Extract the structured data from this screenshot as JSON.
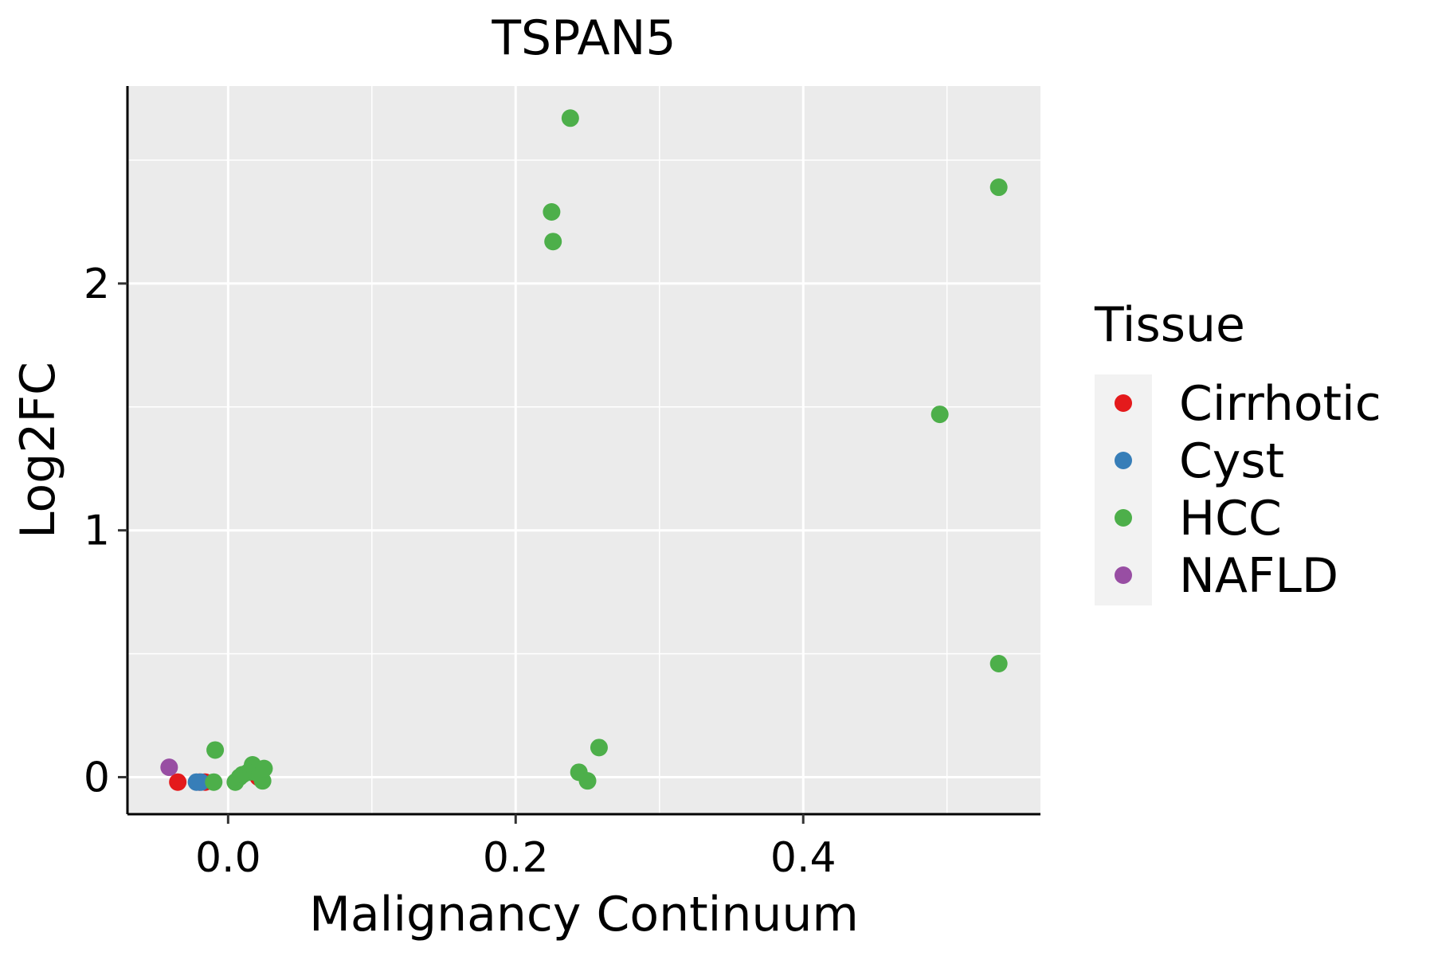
{
  "chart_data": {
    "type": "scatter",
    "title": "TSPAN5",
    "xlabel": "Malignancy Continuum",
    "ylabel": "Log2FC",
    "xlim": [
      -0.07,
      0.565
    ],
    "ylim": [
      -0.15,
      2.8
    ],
    "x_ticks": [
      0.0,
      0.2,
      0.4
    ],
    "x_tick_labels": [
      "0.0",
      "0.2",
      "0.4"
    ],
    "y_ticks": [
      0,
      1,
      2
    ],
    "y_tick_labels": [
      "0",
      "1",
      "2"
    ],
    "grid": true,
    "legend": {
      "title": "Tissue",
      "position": "right",
      "entries": [
        "Cirrhotic",
        "Cyst",
        "HCC",
        "NAFLD"
      ]
    },
    "colors": {
      "Cirrhotic": "#E41A1C",
      "Cyst": "#377EB8",
      "HCC": "#4DAF4A",
      "NAFLD": "#984EA3",
      "panel_bg": "#EBEBEB",
      "grid": "#FFFFFF"
    },
    "series": [
      {
        "name": "Cirrhotic",
        "points": [
          [
            -0.035,
            -0.02
          ],
          [
            -0.02,
            -0.02
          ],
          [
            -0.016,
            -0.02
          ],
          [
            0.021,
            0.0
          ]
        ]
      },
      {
        "name": "Cyst",
        "points": [
          [
            -0.022,
            -0.02
          ],
          [
            -0.019,
            -0.02
          ]
        ]
      },
      {
        "name": "HCC",
        "points": [
          [
            0.238,
            2.67
          ],
          [
            0.225,
            2.29
          ],
          [
            0.226,
            2.17
          ],
          [
            0.536,
            2.39
          ],
          [
            0.495,
            1.47
          ],
          [
            0.536,
            0.46
          ],
          [
            0.258,
            0.12
          ],
          [
            0.244,
            0.02
          ],
          [
            0.25,
            -0.015
          ],
          [
            -0.009,
            0.11
          ],
          [
            -0.01,
            -0.02
          ],
          [
            0.005,
            -0.02
          ],
          [
            0.008,
            0.0
          ],
          [
            0.01,
            0.01
          ],
          [
            0.014,
            0.02
          ],
          [
            0.016,
            0.03
          ],
          [
            0.017,
            0.05
          ],
          [
            0.019,
            0.02
          ],
          [
            0.022,
            0.01
          ],
          [
            0.024,
            -0.015
          ],
          [
            0.025,
            0.035
          ]
        ]
      },
      {
        "name": "NAFLD",
        "points": [
          [
            -0.041,
            0.04
          ]
        ]
      }
    ]
  }
}
